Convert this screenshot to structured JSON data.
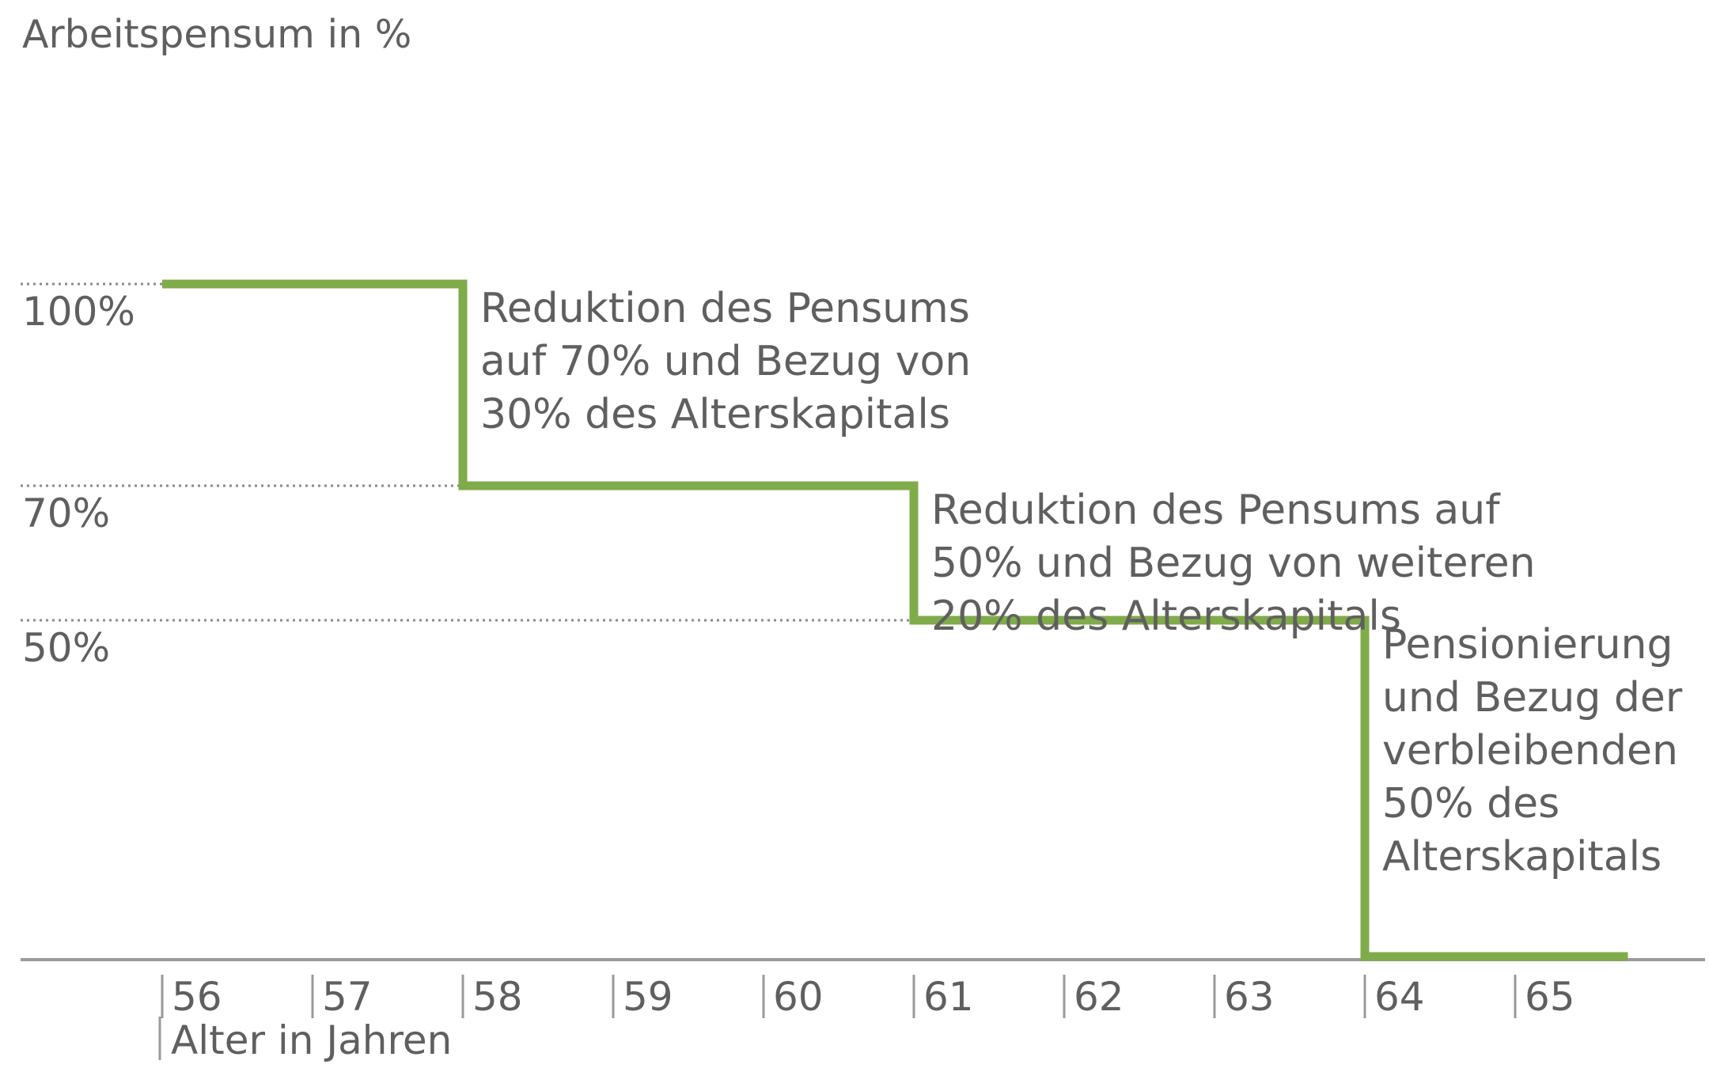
{
  "chart_data": {
    "type": "line",
    "title": "",
    "ylabel": "Arbeitspensum in %",
    "xlabel": "Alter in Jahren",
    "xlim": [
      55,
      66.7
    ],
    "ylim": [
      0,
      100
    ],
    "x_ticks": [
      "56",
      "57",
      "58",
      "59",
      "60",
      "61",
      "62",
      "63",
      "64",
      "65"
    ],
    "y_ticks": [
      {
        "value": 100,
        "label": "100%"
      },
      {
        "value": 70,
        "label": "70%"
      },
      {
        "value": 50,
        "label": "50%"
      }
    ],
    "grid": "dotted reference lines at 100%, 70% and 50%",
    "series": [
      {
        "color": "#7fab4a",
        "step": true,
        "points": [
          {
            "x": 56,
            "y": 100
          },
          {
            "x": 58,
            "y": 100
          },
          {
            "x": 58,
            "y": 70
          },
          {
            "x": 61,
            "y": 70
          },
          {
            "x": 61,
            "y": 50
          },
          {
            "x": 64,
            "y": 50
          },
          {
            "x": 64,
            "y": 0
          },
          {
            "x": 65.75,
            "y": 0
          }
        ]
      }
    ],
    "annotations": [
      {
        "x": 58,
        "y": 100,
        "lines": [
          "Reduktion des Pensums",
          "auf 70% und Bezug von",
          "30% des Alterskapitals"
        ]
      },
      {
        "x": 61,
        "y": 70,
        "lines": [
          "Reduktion des Pensums auf",
          "50% und Bezug von weiteren",
          "20% des Alterskapitals"
        ]
      },
      {
        "x": 64,
        "y": 50,
        "lines": [
          "Pensionierung",
          "und Bezug der",
          "verbleibenden",
          "50% des",
          "Alterskapitals"
        ]
      }
    ],
    "colors": {
      "line": "#7fab4a",
      "axis": "#9a9a9a",
      "text": "#5f5f5f"
    }
  }
}
